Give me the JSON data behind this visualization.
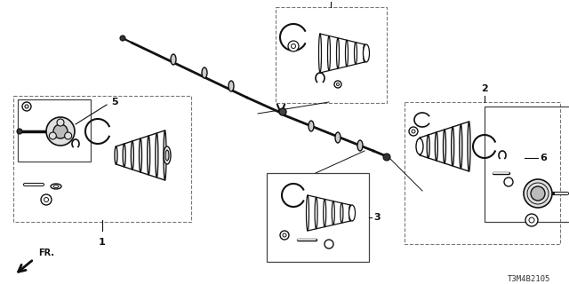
{
  "background_color": "#ffffff",
  "line_color": "#000000",
  "catalog_number": "T3M4B2105",
  "fig_width": 6.4,
  "fig_height": 3.2,
  "dpi": 100
}
